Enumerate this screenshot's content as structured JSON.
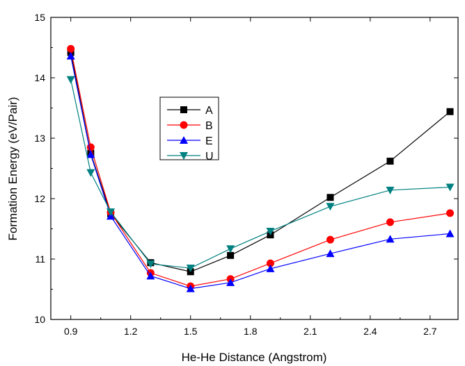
{
  "chart_data": {
    "type": "line",
    "title": "",
    "xlabel": "He-He Distance (Angstrom)",
    "ylabel": "Formation Energy (eV/Pair)",
    "xlim": [
      0.8,
      2.84
    ],
    "ylim": [
      10,
      15
    ],
    "xticks": [
      0.9,
      1.2,
      1.5,
      1.8,
      2.1,
      2.4,
      2.7
    ],
    "xtick_labels": [
      "0.9",
      "1.2",
      "1.5",
      "1.8",
      "2.1",
      "2.4",
      "2.7"
    ],
    "yticks": [
      10,
      11,
      12,
      13,
      14,
      15
    ],
    "ytick_labels": [
      "10",
      "11",
      "12",
      "13",
      "14",
      "15"
    ],
    "grid": false,
    "legend_position": "upper-left-center",
    "x": [
      0.9,
      1.0,
      1.1,
      1.3,
      1.5,
      1.7,
      1.9,
      2.2,
      2.5,
      2.8
    ],
    "series": [
      {
        "name": "A",
        "color": "#000000",
        "marker": "square",
        "values": [
          14.42,
          12.75,
          11.75,
          10.94,
          10.79,
          11.06,
          11.4,
          12.02,
          12.62,
          13.44
        ]
      },
      {
        "name": "B",
        "color": "#ff0000",
        "marker": "circle",
        "values": [
          14.48,
          12.85,
          11.77,
          10.77,
          10.55,
          10.67,
          10.93,
          11.32,
          11.61,
          11.76
        ]
      },
      {
        "name": "E",
        "color": "#0000ff",
        "marker": "triangle-up",
        "values": [
          14.36,
          12.73,
          11.71,
          10.72,
          10.51,
          10.61,
          10.84,
          11.09,
          11.33,
          11.42
        ]
      },
      {
        "name": "U",
        "color": "#008080",
        "marker": "triangle-down",
        "values": [
          13.97,
          12.43,
          11.78,
          10.92,
          10.85,
          11.17,
          11.46,
          11.87,
          12.14,
          12.19
        ]
      }
    ]
  }
}
